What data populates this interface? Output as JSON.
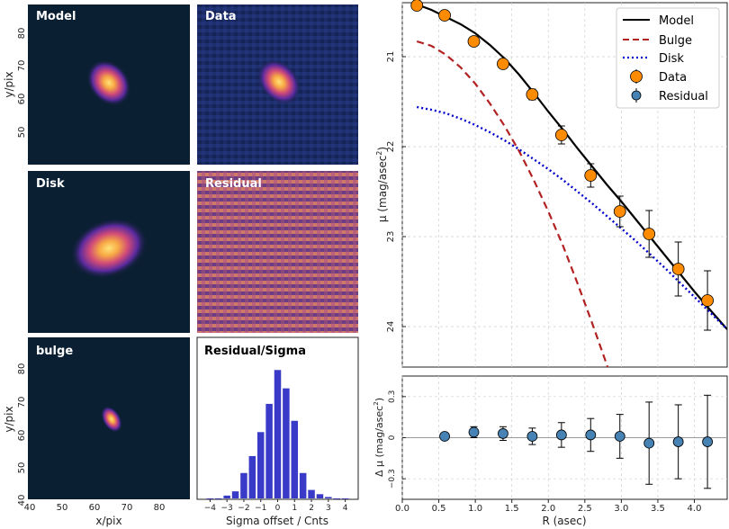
{
  "colors": {
    "model": "#000000",
    "bulge": "#b22222",
    "disk": "#0000cd",
    "data_fill": "#ff8c00",
    "residual_fill": "#4682b4",
    "hist_bar": "#3a3ac8",
    "image_bg": "#0b1f33",
    "grid": "#d0d0d0"
  },
  "panels": {
    "model": "Model",
    "data": "Data",
    "disk": "Disk",
    "residual": "Residual",
    "bulge": "bulge",
    "residual_sigma": "Residual/Sigma"
  },
  "image_axes": {
    "ylabel": "y/pix",
    "xlabel": "x/pix",
    "yticks": [
      "80",
      "70",
      "60",
      "50"
    ],
    "yticks_bottom": [
      "80",
      "70",
      "60",
      "50",
      "40"
    ],
    "xticks": [
      "40",
      "50",
      "60",
      "70",
      "80"
    ]
  },
  "chart_data": [
    {
      "type": "bar",
      "title": "Residual/Sigma",
      "xlabel": "Sigma offset / Cnts",
      "categories": [
        -4.0,
        -3.5,
        -3.0,
        -2.5,
        -2.0,
        -1.5,
        -1.0,
        -0.5,
        0.0,
        0.5,
        1.0,
        1.5,
        2.0,
        2.5,
        3.0,
        3.5,
        4.0
      ],
      "values": [
        0,
        0,
        2,
        5,
        18,
        30,
        47,
        67,
        91,
        78,
        55,
        18,
        6,
        3,
        1,
        0,
        0
      ],
      "xticks": [
        "−4",
        "−3",
        "−2",
        "−1",
        "0",
        "1",
        "2",
        "3",
        "4"
      ],
      "xlim": [
        -4.5,
        4.5
      ],
      "ylim": [
        0,
        95
      ]
    },
    {
      "type": "line",
      "title": "",
      "xlabel": "",
      "ylabel": "μ (mag/asec²)",
      "ylabel_main": "μ (mag/asec",
      "ylabel_sup": "2",
      "ylabel_tail": ")",
      "xlim": [
        0,
        4.45
      ],
      "ylim": [
        20.4,
        24.45
      ],
      "y_inverted": true,
      "yticks": [
        "21",
        "22",
        "23",
        "24"
      ],
      "legend_position": "top-right",
      "legend": [
        "Model",
        "Bulge",
        "Disk",
        "Data",
        "Residual"
      ],
      "series": [
        {
          "name": "Model",
          "style": "solid",
          "x": [
            0.2,
            0.4,
            0.6,
            0.8,
            1.0,
            1.2,
            1.4,
            1.6,
            1.8,
            2.0,
            2.2,
            2.4,
            2.6,
            2.8,
            3.0,
            3.2,
            3.4,
            3.6,
            3.8,
            4.0,
            4.2,
            4.45
          ],
          "y": [
            20.42,
            20.48,
            20.56,
            20.64,
            20.74,
            20.87,
            21.02,
            21.2,
            21.4,
            21.61,
            21.81,
            22.02,
            22.22,
            22.42,
            22.61,
            22.81,
            23.01,
            23.21,
            23.41,
            23.61,
            23.8,
            24.03
          ]
        },
        {
          "name": "Bulge",
          "style": "dashed",
          "x": [
            0.2,
            0.4,
            0.6,
            0.8,
            1.0,
            1.2,
            1.4,
            1.6,
            1.8,
            2.0,
            2.2,
            2.4,
            2.6,
            2.8,
            3.0,
            3.2
          ],
          "y": [
            20.83,
            20.88,
            20.98,
            21.12,
            21.3,
            21.52,
            21.77,
            22.05,
            22.37,
            22.72,
            23.1,
            23.52,
            23.96,
            24.42,
            24.9,
            25.4
          ]
        },
        {
          "name": "Disk",
          "style": "dotted",
          "x": [
            0.2,
            0.4,
            0.6,
            0.8,
            1.0,
            1.2,
            1.4,
            1.6,
            1.8,
            2.0,
            2.2,
            2.4,
            2.6,
            2.8,
            3.0,
            3.2,
            3.4,
            3.6,
            3.8,
            4.0,
            4.2,
            4.45
          ],
          "y": [
            21.56,
            21.59,
            21.63,
            21.69,
            21.76,
            21.84,
            21.93,
            22.03,
            22.14,
            22.25,
            22.37,
            22.5,
            22.63,
            22.77,
            22.91,
            23.05,
            23.2,
            23.35,
            23.51,
            23.67,
            23.83,
            24.03
          ]
        },
        {
          "name": "Data",
          "style": "markers",
          "x": [
            0.2,
            0.58,
            0.98,
            1.38,
            1.78,
            2.18,
            2.58,
            2.98,
            3.38,
            3.78,
            4.18
          ],
          "y": [
            20.43,
            20.54,
            20.83,
            21.08,
            21.42,
            21.87,
            22.32,
            22.72,
            22.97,
            23.36,
            23.71
          ],
          "err": [
            0.0,
            0.0,
            0.05,
            0.05,
            0.06,
            0.1,
            0.13,
            0.17,
            0.26,
            0.3,
            0.33
          ]
        }
      ]
    },
    {
      "type": "scatter",
      "xlabel": "R (asec)",
      "ylabel": "Δ μ (mag/asec²)",
      "ylabel_main": "Δ μ (mag/asec",
      "ylabel_sup": "2",
      "ylabel_tail": ")",
      "xlim": [
        0,
        4.45
      ],
      "ylim": [
        -0.45,
        0.45
      ],
      "xticks": [
        "0.0",
        "0.5",
        "1.0",
        "1.5",
        "2.0",
        "2.5",
        "3.0",
        "3.5",
        "4.0"
      ],
      "yticks": [
        "0.3",
        "0",
        "−0.3"
      ],
      "series": [
        {
          "name": "Residual",
          "x": [
            0.58,
            0.98,
            1.38,
            1.78,
            2.18,
            2.58,
            2.98,
            3.38,
            3.78,
            4.18
          ],
          "y": [
            0.01,
            0.04,
            0.03,
            0.01,
            0.02,
            0.02,
            0.01,
            -0.04,
            -0.03,
            -0.03
          ],
          "err": [
            0.02,
            0.04,
            0.05,
            0.06,
            0.09,
            0.12,
            0.16,
            0.3,
            0.27,
            0.34
          ]
        }
      ]
    }
  ]
}
